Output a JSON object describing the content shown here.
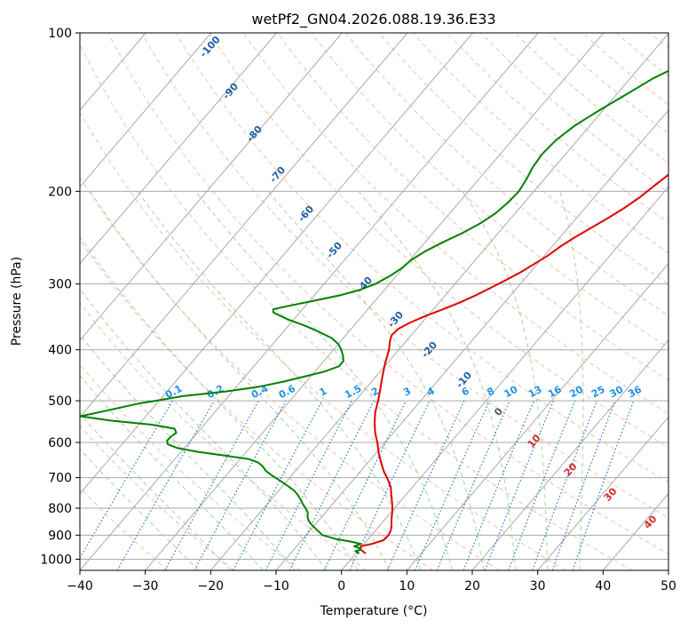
{
  "chart_data": {
    "type": "line",
    "title": "wetPf2_GN04.2026.088.19.36.E33",
    "xlabel": "Temperature (°C)",
    "ylabel": "Pressure (hPa)",
    "xlim": [
      -40,
      50
    ],
    "ylim": [
      1050,
      100
    ],
    "y_scale": "log",
    "grid": true,
    "x_ticks": [
      -40,
      -30,
      -20,
      -10,
      0,
      10,
      20,
      30,
      40,
      50
    ],
    "y_ticks": [
      1000,
      900,
      800,
      700,
      600,
      500,
      400,
      300,
      200,
      100
    ],
    "series": [
      {
        "color": "#e00000",
        "points": [
          [
            1.5,
            975
          ],
          [
            0.3,
            960
          ],
          [
            -0.2,
            945
          ],
          [
            1.2,
            935
          ],
          [
            2.5,
            920
          ],
          [
            2.6,
            900
          ],
          [
            2.3,
            880
          ],
          [
            1.7,
            860
          ],
          [
            1.0,
            840
          ],
          [
            0.2,
            815
          ],
          [
            -0.7,
            790
          ],
          [
            -2.0,
            760
          ],
          [
            -3.3,
            730
          ],
          [
            -4.8,
            705
          ],
          [
            -6.5,
            680
          ],
          [
            -8.0,
            655
          ],
          [
            -9.5,
            630
          ],
          [
            -11.2,
            600
          ],
          [
            -12.8,
            575
          ],
          [
            -14.2,
            550
          ],
          [
            -15.5,
            525
          ],
          [
            -16.5,
            500
          ],
          [
            -17.7,
            475
          ],
          [
            -19.0,
            450
          ],
          [
            -20.3,
            425
          ],
          [
            -21.5,
            400
          ],
          [
            -22.5,
            385
          ],
          [
            -23.0,
            375
          ],
          [
            -22.8,
            365
          ],
          [
            -21.8,
            355
          ],
          [
            -20.3,
            345
          ],
          [
            -18.5,
            335
          ],
          [
            -16.8,
            325
          ],
          [
            -15.3,
            315
          ],
          [
            -14.0,
            305
          ],
          [
            -12.7,
            295
          ],
          [
            -11.5,
            285
          ],
          [
            -10.5,
            275
          ],
          [
            -9.5,
            265
          ],
          [
            -8.8,
            255
          ],
          [
            -7.8,
            245
          ],
          [
            -6.5,
            235
          ],
          [
            -5.2,
            225
          ],
          [
            -4.0,
            215
          ],
          [
            -3.0,
            205
          ],
          [
            -2.3,
            195
          ],
          [
            -1.5,
            185
          ],
          [
            -0.9,
            175
          ],
          [
            -0.4,
            165
          ],
          [
            0.0,
            155
          ],
          [
            0.5,
            145
          ],
          [
            1.5,
            135
          ],
          [
            3.0,
            125
          ],
          [
            4.5,
            118
          ],
          [
            5.5,
            112
          ],
          [
            5.8,
            106
          ],
          [
            5.5,
            100
          ]
        ]
      },
      {
        "color": "#008000",
        "points": [
          [
            0.5,
            975
          ],
          [
            -0.4,
            965
          ],
          [
            0.3,
            960
          ],
          [
            -0.5,
            950
          ],
          [
            -1.2,
            945
          ],
          [
            -0.5,
            935
          ],
          [
            -2.5,
            925
          ],
          [
            -5.0,
            915
          ],
          [
            -7.5,
            900
          ],
          [
            -9.0,
            880
          ],
          [
            -10.5,
            860
          ],
          [
            -11.5,
            845
          ],
          [
            -12.2,
            830
          ],
          [
            -12.7,
            815
          ],
          [
            -13.6,
            800
          ],
          [
            -14.6,
            785
          ],
          [
            -15.5,
            770
          ],
          [
            -16.5,
            755
          ],
          [
            -17.7,
            740
          ],
          [
            -19.3,
            725
          ],
          [
            -21.0,
            710
          ],
          [
            -22.8,
            695
          ],
          [
            -24.5,
            680
          ],
          [
            -25.7,
            665
          ],
          [
            -26.8,
            655
          ],
          [
            -28.8,
            645
          ],
          [
            -33.0,
            635
          ],
          [
            -37.5,
            625
          ],
          [
            -41.0,
            615
          ],
          [
            -43.0,
            605
          ],
          [
            -43.6,
            595
          ],
          [
            -43.5,
            585
          ],
          [
            -43.2,
            575
          ],
          [
            -44.0,
            565
          ],
          [
            -48.0,
            555
          ],
          [
            -55.0,
            545
          ],
          [
            -60.0,
            535
          ],
          [
            -57.5,
            525
          ],
          [
            -55.0,
            515
          ],
          [
            -52.5,
            505
          ],
          [
            -50.5,
            500
          ],
          [
            -47.0,
            490
          ],
          [
            -41.0,
            480
          ],
          [
            -36.5,
            470
          ],
          [
            -33.5,
            460
          ],
          [
            -31.0,
            450
          ],
          [
            -28.5,
            440
          ],
          [
            -27.0,
            430
          ],
          [
            -27.0,
            420
          ],
          [
            -27.8,
            410
          ],
          [
            -28.8,
            400
          ],
          [
            -30.0,
            390
          ],
          [
            -31.8,
            380
          ],
          [
            -34.5,
            370
          ],
          [
            -37.5,
            360
          ],
          [
            -41.0,
            350
          ],
          [
            -44.0,
            340
          ],
          [
            -44.5,
            335
          ],
          [
            -42.5,
            330
          ],
          [
            -39.0,
            322
          ],
          [
            -36.0,
            315
          ],
          [
            -33.8,
            308
          ],
          [
            -32.2,
            300
          ],
          [
            -31.0,
            290
          ],
          [
            -30.2,
            280
          ],
          [
            -29.8,
            270
          ],
          [
            -28.8,
            260
          ],
          [
            -27.3,
            250
          ],
          [
            -25.5,
            240
          ],
          [
            -24.0,
            230
          ],
          [
            -23.0,
            220
          ],
          [
            -22.5,
            210
          ],
          [
            -22.3,
            200
          ],
          [
            -22.7,
            190
          ],
          [
            -23.3,
            180
          ],
          [
            -23.6,
            170
          ],
          [
            -23.3,
            160
          ],
          [
            -22.3,
            150
          ],
          [
            -20.5,
            140
          ],
          [
            -18.3,
            130
          ],
          [
            -16.5,
            122
          ],
          [
            -14.0,
            115
          ],
          [
            -11.5,
            108
          ],
          [
            -9.0,
            100
          ]
        ]
      }
    ],
    "dry_adiabat_labels": [
      "-100",
      "-90",
      "-80",
      "-70",
      "-60",
      "-50",
      "-40",
      "-30",
      "-20",
      "-10",
      "0",
      "10",
      "20",
      "30",
      "40"
    ],
    "mixing_ratio_labels": [
      "0.1",
      "0.2",
      "0.4",
      "0.6",
      "1",
      "1.5",
      "2",
      "3",
      "4",
      "6",
      "8",
      "10",
      "13",
      "16",
      "20",
      "25",
      "30",
      "36"
    ],
    "colors": {
      "isotherm": "#aaaaaa",
      "isobar": "#aaaaaa",
      "dry_adiabat": "#f4a582",
      "moist_adiabat": "#8fc98f",
      "mixing_ratio": "#1f77d4",
      "label_blue": "#1f5fa0",
      "label_red": "#d62728",
      "label_mixing": "#1f8fe8"
    }
  }
}
